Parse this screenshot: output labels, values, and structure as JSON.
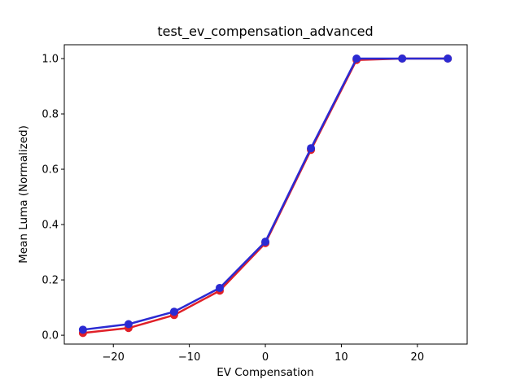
{
  "page": {
    "background": "#ffffff"
  },
  "chart_data": {
    "type": "line",
    "title": "test_ev_compensation_advanced",
    "xlabel": "EV Compensation",
    "ylabel": "Mean Luma (Normalized)",
    "x": [
      -24,
      -18,
      -12,
      -6,
      0,
      6,
      12,
      18,
      24
    ],
    "series": [
      {
        "name": "red-series",
        "color": "#e02028",
        "marker": "circle",
        "values": [
          0.008,
          0.026,
          0.073,
          0.161,
          0.333,
          0.67,
          0.995,
          1.0,
          1.0
        ]
      },
      {
        "name": "blue-series",
        "color": "#2b2ad2",
        "marker": "circle",
        "values": [
          0.02,
          0.04,
          0.085,
          0.171,
          0.338,
          0.676,
          1.0,
          1.0,
          1.0
        ]
      }
    ],
    "xticks": {
      "values": [
        -20,
        -10,
        0,
        10,
        20
      ],
      "labels": [
        "−20",
        "−10",
        "0",
        "10",
        "20"
      ]
    },
    "yticks": {
      "values": [
        0.0,
        0.2,
        0.4,
        0.6,
        0.8,
        1.0
      ],
      "labels": [
        "0.0",
        "0.2",
        "0.4",
        "0.6",
        "0.8",
        "1.0"
      ]
    },
    "xlim": [
      -26.45,
      26.55
    ],
    "ylim": [
      -0.032,
      1.05
    ],
    "grid": false,
    "legend_position": "none",
    "frame_color": "#000000",
    "marker_radius": 5,
    "line_width": 2.5
  }
}
